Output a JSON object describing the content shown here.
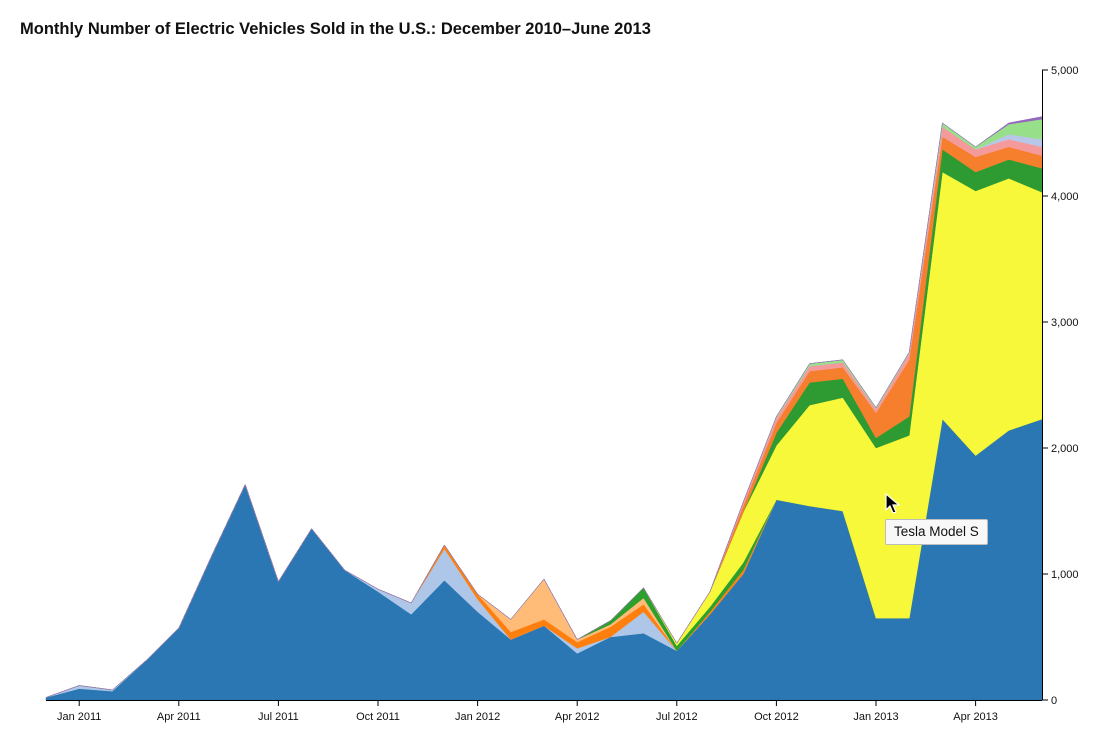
{
  "chart_data": {
    "type": "area",
    "stacked": true,
    "title": "Monthly Number of Electric Vehicles Sold in the U.S.: December 2010–June 2013",
    "xlabel": "",
    "ylabel": "",
    "ylim": [
      0,
      5000
    ],
    "x": [
      "2010-12",
      "2011-01",
      "2011-02",
      "2011-03",
      "2011-04",
      "2011-05",
      "2011-06",
      "2011-07",
      "2011-08",
      "2011-09",
      "2011-10",
      "2011-11",
      "2011-12",
      "2012-01",
      "2012-02",
      "2012-03",
      "2012-04",
      "2012-05",
      "2012-06",
      "2012-07",
      "2012-08",
      "2012-09",
      "2012-10",
      "2012-11",
      "2012-12",
      "2013-01",
      "2013-02",
      "2013-03",
      "2013-04",
      "2013-05",
      "2013-06"
    ],
    "x_ticks": [
      {
        "date": "2011-01",
        "label": "Jan 2011"
      },
      {
        "date": "2011-04",
        "label": "Apr 2011"
      },
      {
        "date": "2011-07",
        "label": "Jul 2011"
      },
      {
        "date": "2011-10",
        "label": "Oct 2011"
      },
      {
        "date": "2012-01",
        "label": "Jan 2012"
      },
      {
        "date": "2012-04",
        "label": "Apr 2012"
      },
      {
        "date": "2012-07",
        "label": "Jul 2012"
      },
      {
        "date": "2012-10",
        "label": "Oct 2012"
      },
      {
        "date": "2013-01",
        "label": "Jan 2013"
      },
      {
        "date": "2013-04",
        "label": "Apr 2013"
      }
    ],
    "y_ticks": [
      {
        "value": 0,
        "label": "0"
      },
      {
        "value": 1000,
        "label": "1,000"
      },
      {
        "value": 2000,
        "label": "2,000"
      },
      {
        "value": 3000,
        "label": "3,000"
      },
      {
        "value": 4000,
        "label": "4,000"
      },
      {
        "value": 5000,
        "label": "5,000"
      }
    ],
    "y_axis_position": "right",
    "grid": false,
    "legend": "none",
    "series": [
      {
        "color": "#2a77b3",
        "values": [
          20,
          90,
          70,
          310,
          570,
          1150,
          1710,
          940,
          1360,
          1030,
          860,
          680,
          950,
          700,
          480,
          590,
          370,
          500,
          530,
          390,
          680,
          1000,
          1590,
          1540,
          1500,
          650,
          650,
          2230,
          1940,
          2140,
          2230
        ]
      },
      {
        "color": "#aec7e8",
        "values": [
          0,
          25,
          10,
          0,
          0,
          0,
          0,
          0,
          0,
          0,
          20,
          90,
          250,
          100,
          0,
          0,
          40,
          0,
          170,
          0,
          0,
          0,
          0,
          0,
          0,
          0,
          0,
          0,
          0,
          0,
          0
        ]
      },
      {
        "color": "#ff7f0e",
        "values": [
          0,
          0,
          0,
          0,
          0,
          0,
          0,
          0,
          0,
          0,
          0,
          0,
          30,
          40,
          60,
          50,
          50,
          80,
          60,
          0,
          20,
          30,
          0,
          0,
          0,
          0,
          0,
          0,
          0,
          0,
          0
        ]
      },
      {
        "color": "#ffbb78",
        "values": [
          0,
          0,
          0,
          0,
          0,
          0,
          0,
          0,
          0,
          0,
          0,
          0,
          0,
          0,
          100,
          320,
          20,
          20,
          50,
          0,
          0,
          0,
          0,
          0,
          0,
          0,
          0,
          0,
          0,
          0,
          0
        ]
      },
      {
        "color": "#2ca02c",
        "values": [
          0,
          0,
          0,
          0,
          0,
          0,
          0,
          0,
          0,
          0,
          0,
          0,
          0,
          0,
          0,
          0,
          0,
          30,
          80,
          40,
          40,
          60,
          0,
          0,
          0,
          0,
          0,
          0,
          0,
          0,
          0
        ]
      },
      {
        "name": "Tesla Model S",
        "color": "#f8f83a",
        "values": [
          0,
          0,
          0,
          0,
          0,
          0,
          0,
          0,
          0,
          0,
          0,
          0,
          0,
          0,
          0,
          0,
          0,
          0,
          0,
          20,
          120,
          400,
          430,
          800,
          900,
          1350,
          1450,
          1960,
          2100,
          2000,
          1800
        ]
      },
      {
        "color": "#2e9a32",
        "values": [
          0,
          0,
          0,
          0,
          0,
          0,
          0,
          0,
          0,
          0,
          0,
          0,
          0,
          0,
          0,
          0,
          0,
          0,
          0,
          0,
          0,
          0,
          100,
          180,
          150,
          80,
          150,
          180,
          150,
          150,
          190
        ]
      },
      {
        "color": "#f57f2c",
        "values": [
          0,
          0,
          0,
          0,
          0,
          0,
          0,
          0,
          0,
          0,
          0,
          0,
          0,
          0,
          0,
          0,
          0,
          0,
          0,
          0,
          0,
          50,
          80,
          90,
          90,
          200,
          450,
          100,
          120,
          100,
          100
        ]
      },
      {
        "color": "#f59a9a",
        "values": [
          0,
          0,
          0,
          0,
          0,
          0,
          0,
          0,
          0,
          0,
          0,
          0,
          0,
          0,
          0,
          0,
          0,
          0,
          0,
          0,
          0,
          30,
          40,
          40,
          40,
          30,
          50,
          80,
          60,
          60,
          70
        ]
      },
      {
        "color": "#b8c6e8",
        "values": [
          0,
          0,
          0,
          0,
          0,
          0,
          0,
          0,
          0,
          0,
          0,
          0,
          0,
          0,
          0,
          0,
          0,
          0,
          0,
          0,
          0,
          0,
          0,
          0,
          0,
          0,
          0,
          0,
          0,
          40,
          60
        ]
      },
      {
        "color": "#98df8a",
        "values": [
          0,
          0,
          0,
          0,
          0,
          0,
          0,
          0,
          0,
          0,
          0,
          0,
          0,
          0,
          0,
          0,
          0,
          0,
          0,
          0,
          0,
          0,
          10,
          20,
          20,
          10,
          10,
          30,
          20,
          80,
          160
        ]
      },
      {
        "color": "#9467bd",
        "values": [
          0,
          0,
          0,
          0,
          0,
          0,
          0,
          0,
          0,
          0,
          0,
          0,
          0,
          0,
          0,
          0,
          0,
          0,
          0,
          0,
          0,
          0,
          0,
          0,
          0,
          0,
          0,
          0,
          0,
          10,
          20
        ]
      }
    ],
    "annotations": [
      {
        "text": "Tesla Model S",
        "type": "tooltip"
      }
    ]
  },
  "tooltip": {
    "text": "Tesla Model S"
  }
}
